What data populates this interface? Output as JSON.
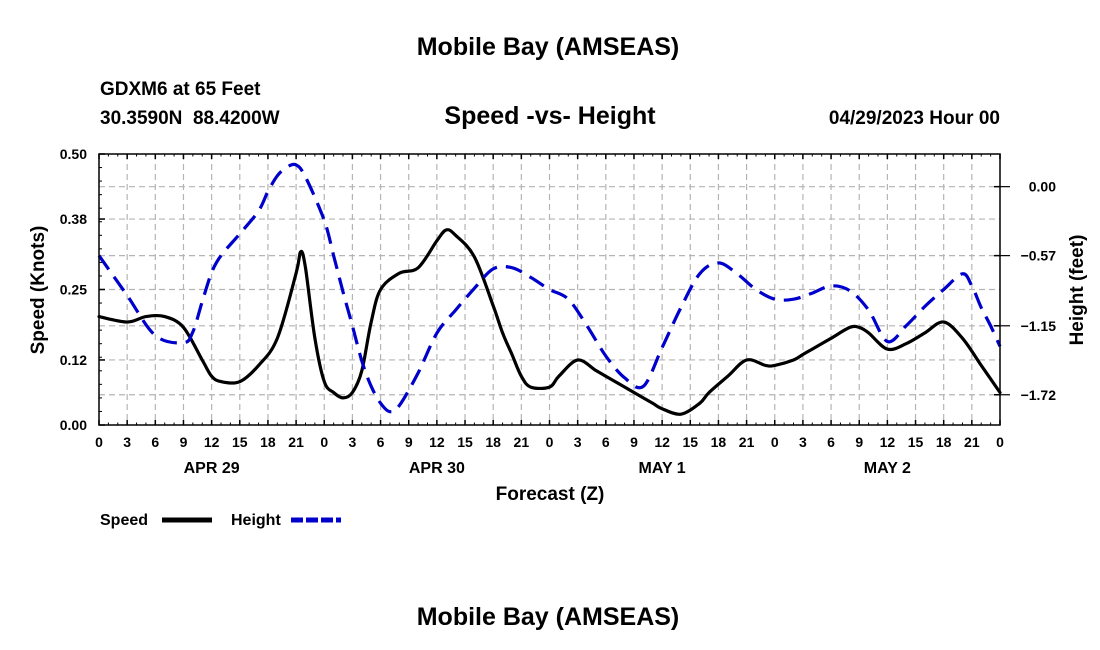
{
  "chart_data": {
    "type": "line",
    "title": "Mobile Bay (AMSEAS)",
    "bottom_title": "Mobile Bay (AMSEAS)",
    "station_line": "GDXM6 at 65 Feet",
    "coords_line": "30.3590N  88.4200W",
    "subtitle": "Speed -vs- Height",
    "timestamp": "04/29/2023 Hour 00",
    "xlabel": "Forecast (Z)",
    "ylabel_left": "Speed (Knots)",
    "ylabel_right": "Height (feet)",
    "ylim_left": [
      0,
      0.5
    ],
    "ylim_right": [
      -1.97,
      0.27
    ],
    "x_range_hours": [
      0,
      96
    ],
    "yticks_left": [
      "0.00",
      "0.12",
      "0.25",
      "0.38",
      "0.50"
    ],
    "yticks_right": [
      "−1.72",
      "−1.15",
      "−0.57",
      "0.00"
    ],
    "x_tick_labels": [
      "0",
      "3",
      "6",
      "9",
      "12",
      "15",
      "18",
      "21",
      "0",
      "3",
      "6",
      "9",
      "12",
      "15",
      "18",
      "21",
      "0",
      "3",
      "6",
      "9",
      "12",
      "15",
      "18",
      "21",
      "0",
      "3",
      "6",
      "9",
      "12",
      "15",
      "18",
      "21",
      "0"
    ],
    "date_labels": [
      {
        "label": "APR 29",
        "hour": 12
      },
      {
        "label": "APR 30",
        "hour": 36
      },
      {
        "label": "MAY 1",
        "hour": 60
      },
      {
        "label": "MAY 2",
        "hour": 84
      }
    ],
    "grid": true,
    "legend_position": "bottom-left",
    "series": [
      {
        "name": "Speed",
        "axis": "left",
        "color": "#000000",
        "style": "solid",
        "x": [
          0,
          3,
          5,
          7,
          9,
          11,
          12,
          13,
          15,
          17,
          19,
          21,
          21.5,
          22,
          23,
          24,
          25,
          26,
          27,
          28,
          29,
          30,
          32,
          34,
          36,
          37,
          38,
          40,
          42,
          43,
          44,
          45,
          46,
          48,
          49,
          51,
          53,
          55,
          57,
          59,
          60,
          62,
          64,
          65,
          67,
          69,
          71,
          72,
          74,
          75,
          76,
          78,
          80,
          81,
          82,
          84,
          86,
          88,
          90,
          92,
          94,
          96
        ],
        "values": [
          0.2,
          0.19,
          0.2,
          0.2,
          0.18,
          0.12,
          0.09,
          0.08,
          0.08,
          0.11,
          0.16,
          0.28,
          0.32,
          0.29,
          0.16,
          0.08,
          0.06,
          0.05,
          0.06,
          0.1,
          0.19,
          0.25,
          0.28,
          0.29,
          0.34,
          0.36,
          0.35,
          0.31,
          0.22,
          0.17,
          0.13,
          0.09,
          0.07,
          0.07,
          0.09,
          0.12,
          0.1,
          0.08,
          0.06,
          0.04,
          0.03,
          0.02,
          0.04,
          0.06,
          0.09,
          0.12,
          0.11,
          0.11,
          0.12,
          0.13,
          0.14,
          0.16,
          0.18,
          0.18,
          0.17,
          0.14,
          0.15,
          0.17,
          0.19,
          0.16,
          0.11,
          0.06
        ]
      },
      {
        "name": "Height",
        "axis": "right",
        "color": "#0000cc",
        "style": "dashed",
        "x": [
          0,
          3,
          6,
          9,
          10,
          11,
          12,
          13,
          15,
          17,
          18,
          19,
          20,
          21,
          22,
          24,
          25,
          26,
          27,
          28,
          29,
          30,
          31,
          32,
          34,
          36,
          38,
          40,
          42,
          44,
          46,
          48,
          50,
          52,
          54,
          56,
          58,
          60,
          62,
          64,
          66,
          68,
          70,
          72,
          74,
          76,
          78,
          80,
          82,
          84,
          86,
          88,
          90,
          92,
          93,
          94,
          95,
          96
        ],
        "values": [
          -0.57,
          -0.9,
          -1.23,
          -1.29,
          -1.2,
          -0.95,
          -0.71,
          -0.57,
          -0.39,
          -0.2,
          -0.04,
          0.09,
          0.16,
          0.18,
          0.08,
          -0.28,
          -0.57,
          -0.87,
          -1.15,
          -1.44,
          -1.65,
          -1.79,
          -1.86,
          -1.81,
          -1.54,
          -1.21,
          -1.02,
          -0.84,
          -0.68,
          -0.67,
          -0.75,
          -0.85,
          -0.93,
          -1.15,
          -1.4,
          -1.58,
          -1.65,
          -1.33,
          -1.0,
          -0.72,
          -0.63,
          -0.72,
          -0.85,
          -0.93,
          -0.93,
          -0.88,
          -0.82,
          -0.86,
          -1.02,
          -1.28,
          -1.15,
          -0.99,
          -0.85,
          -0.72,
          -0.82,
          -1.0,
          -1.15,
          -1.32
        ]
      }
    ],
    "legend": [
      {
        "label": "Speed",
        "color": "#000000"
      },
      {
        "label": "Height",
        "color": "#0000cc"
      }
    ]
  }
}
